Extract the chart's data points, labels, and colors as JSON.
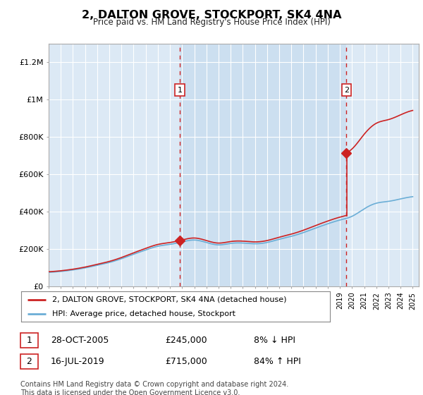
{
  "title": "2, DALTON GROVE, STOCKPORT, SK4 4NA",
  "subtitle": "Price paid vs. HM Land Registry's House Price Index (HPI)",
  "ylim": [
    0,
    1300000
  ],
  "xlim_start": 1995.0,
  "xlim_end": 2025.5,
  "background_color": "#dce9f5",
  "shaded_region_color": "#ccdff0",
  "grid_color": "#ffffff",
  "sale1_x": 2005.82,
  "sale1_y": 245000,
  "sale2_x": 2019.54,
  "sale2_y": 715000,
  "sale1_label": "1",
  "sale2_label": "2",
  "legend_line1": "2, DALTON GROVE, STOCKPORT, SK4 4NA (detached house)",
  "legend_line2": "HPI: Average price, detached house, Stockport",
  "table_row1_num": "1",
  "table_row1_date": "28-OCT-2005",
  "table_row1_price": "£245,000",
  "table_row1_hpi": "8% ↓ HPI",
  "table_row2_num": "2",
  "table_row2_date": "16-JUL-2019",
  "table_row2_price": "£715,000",
  "table_row2_hpi": "84% ↑ HPI",
  "footer": "Contains HM Land Registry data © Crown copyright and database right 2024.\nThis data is licensed under the Open Government Licence v3.0.",
  "hpi_color": "#6baed6",
  "price_color": "#cc2222",
  "dashed_line_color": "#cc2222"
}
